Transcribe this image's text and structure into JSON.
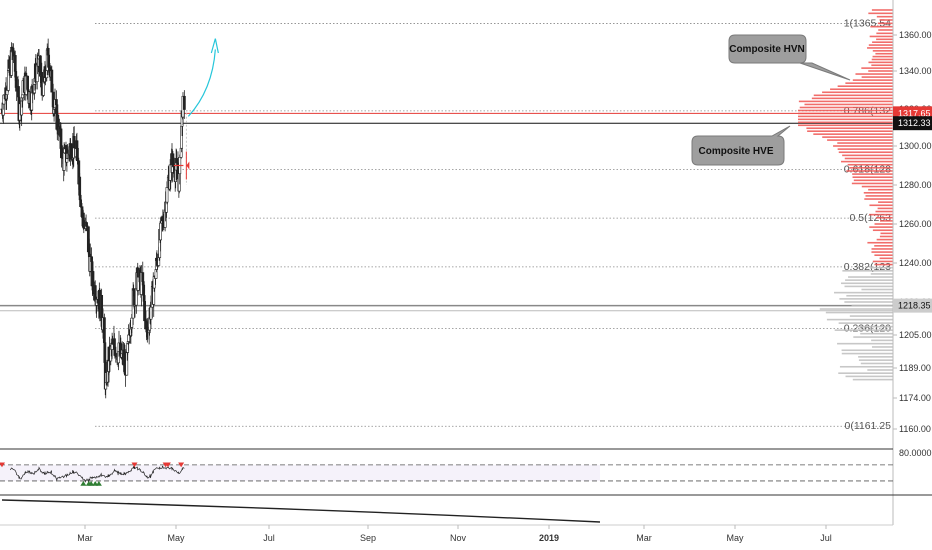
{
  "chart_data": {
    "type": "candlestick",
    "title": "",
    "y_axis": {
      "ticks": [
        "1360.00",
        "1340.00",
        "1320.00",
        "1300.00",
        "1280.00",
        "1260.00",
        "1240.00",
        "1220.00",
        "1205.00",
        "1189.00",
        "1174.00",
        "1160.00"
      ],
      "range": [
        1150,
        1372
      ],
      "side": "right"
    },
    "x_axis": {
      "ticks": [
        "Mar",
        "May",
        "Jul",
        "Sep",
        "Nov",
        "2019",
        "Mar",
        "May",
        "Jul"
      ],
      "bold_tick": "2019"
    },
    "price_badges": [
      {
        "value": "1317.65",
        "color": "#e53935",
        "text_color": "#ffffff"
      },
      {
        "value": "1312.33",
        "color": "#111111",
        "text_color": "#ffffff"
      },
      {
        "value": "1218.35",
        "color": "#cccccc",
        "text_color": "#111111"
      }
    ],
    "fib_levels": [
      {
        "label": "1(1365.54",
        "price": 1365.54
      },
      {
        "label": "0.786(132",
        "price": 1319.0
      },
      {
        "label": "0.618(128",
        "price": 1288.0
      },
      {
        "label": "0.5(1263",
        "price": 1263.0
      },
      {
        "label": "0.382(123",
        "price": 1238.0
      },
      {
        "label": "0.236(120",
        "price": 1208.0
      },
      {
        "label": "0(1161.25",
        "price": 1161.25
      }
    ],
    "horizontal_lines": [
      {
        "price": 1317.65,
        "color": "#e53935"
      },
      {
        "price": 1312.33,
        "color": "#111111"
      },
      {
        "price": 1218.35,
        "color": "#888888"
      }
    ],
    "callouts": [
      {
        "text": "Composite HVN"
      },
      {
        "text": "Composite HVE"
      }
    ],
    "ohlc_anchors": [
      [
        "2018-01-01",
        1320
      ],
      [
        "2018-01-15",
        1338
      ],
      [
        "2018-01-25",
        1352
      ],
      [
        "2018-02-08",
        1318
      ],
      [
        "2018-02-20",
        1335
      ],
      [
        "2018-03-05",
        1325
      ],
      [
        "2018-03-20",
        1345
      ],
      [
        "2018-04-02",
        1330
      ],
      [
        "2018-04-12",
        1350
      ],
      [
        "2018-04-25",
        1322
      ],
      [
        "2018-05-05",
        1310
      ],
      [
        "2018-05-15",
        1292
      ],
      [
        "2018-06-01",
        1300
      ],
      [
        "2018-06-15",
        1296
      ],
      [
        "2018-06-25",
        1265
      ],
      [
        "2018-07-06",
        1255
      ],
      [
        "2018-07-18",
        1230
      ],
      [
        "2018-08-01",
        1222
      ],
      [
        "2018-08-10",
        1212
      ],
      [
        "2018-08-16",
        1178
      ],
      [
        "2018-08-24",
        1195
      ],
      [
        "2018-09-05",
        1200
      ],
      [
        "2018-09-20",
        1194
      ],
      [
        "2018-10-01",
        1190
      ],
      [
        "2018-10-12",
        1218
      ],
      [
        "2018-10-25",
        1232
      ],
      [
        "2018-11-05",
        1228
      ],
      [
        "2018-11-13",
        1205
      ],
      [
        "2018-11-26",
        1222
      ],
      [
        "2018-12-10",
        1248
      ],
      [
        "2018-12-20",
        1262
      ],
      [
        "2018-12-31",
        1282
      ],
      [
        "2019-01-08",
        1292
      ],
      [
        "2019-01-18",
        1287
      ],
      [
        "2019-01-24",
        1282
      ],
      [
        "2019-01-31",
        1322
      ],
      [
        "2019-02-04",
        1314
      ]
    ],
    "volume_profile": {
      "red_range": [
        1238,
        1372
      ],
      "gray_range": [
        1182,
        1238
      ],
      "max_bar_price": 1317
    },
    "rsi_panel": {
      "tick": "80.0000",
      "upper_band": 70,
      "lower_band": 30,
      "markers": [
        {
          "date": "2018-01-01",
          "kind": "down"
        },
        {
          "date": "2018-06-28",
          "kind": "up"
        },
        {
          "date": "2018-07-10",
          "kind": "up"
        },
        {
          "date": "2018-07-15",
          "kind": "up"
        },
        {
          "date": "2018-07-24",
          "kind": "up"
        },
        {
          "date": "2018-08-01",
          "kind": "up"
        },
        {
          "date": "2018-10-18",
          "kind": "down"
        },
        {
          "date": "2018-12-25",
          "kind": "down"
        },
        {
          "date": "2018-12-30",
          "kind": "down"
        },
        {
          "date": "2019-01-28",
          "kind": "down"
        }
      ]
    }
  }
}
